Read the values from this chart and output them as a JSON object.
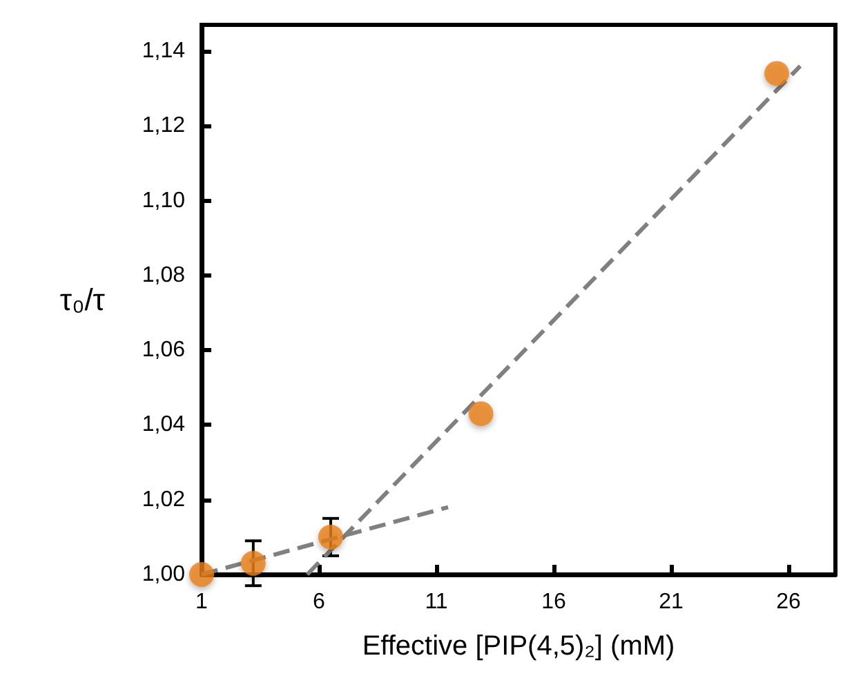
{
  "chart_data": {
    "type": "scatter",
    "xlabel": "Effective [PIP(4,5)₂] (mM)",
    "ylabel": "τ₀/τ",
    "xlim": [
      1,
      28
    ],
    "xticks": [
      1,
      6,
      11,
      16,
      21,
      26
    ],
    "ylim": [
      1.0,
      1.147
    ],
    "yticks": [
      {
        "value": 1.0,
        "label": "1,00"
      },
      {
        "value": 1.02,
        "label": "1,02"
      },
      {
        "value": 1.04,
        "label": "1,04"
      },
      {
        "value": 1.06,
        "label": "1,06"
      },
      {
        "value": 1.08,
        "label": "1,08"
      },
      {
        "value": 1.1,
        "label": "1,10"
      },
      {
        "value": 1.12,
        "label": "1,12"
      },
      {
        "value": 1.14,
        "label": "1,14"
      }
    ],
    "grid": false,
    "series": [
      {
        "color": "#e87e1a",
        "marker": "circle",
        "x": [
          1,
          3.2,
          6.5,
          12.9,
          25.5
        ],
        "values": [
          1.0,
          1.003,
          1.01,
          1.043,
          1.134
        ],
        "errors": [
          null,
          0.006,
          0.005,
          null,
          null
        ]
      },
      {
        "type": "line",
        "color": "#808080",
        "marker": "none",
        "line_style": "dashed",
        "x": [
          1,
          11.5
        ],
        "values": [
          1.0,
          1.018
        ]
      },
      {
        "type": "line",
        "color": "#808080",
        "marker": "none",
        "line_style": "dashed",
        "x": [
          5.5,
          26.5
        ],
        "values": [
          1.0,
          1.136
        ]
      }
    ]
  }
}
